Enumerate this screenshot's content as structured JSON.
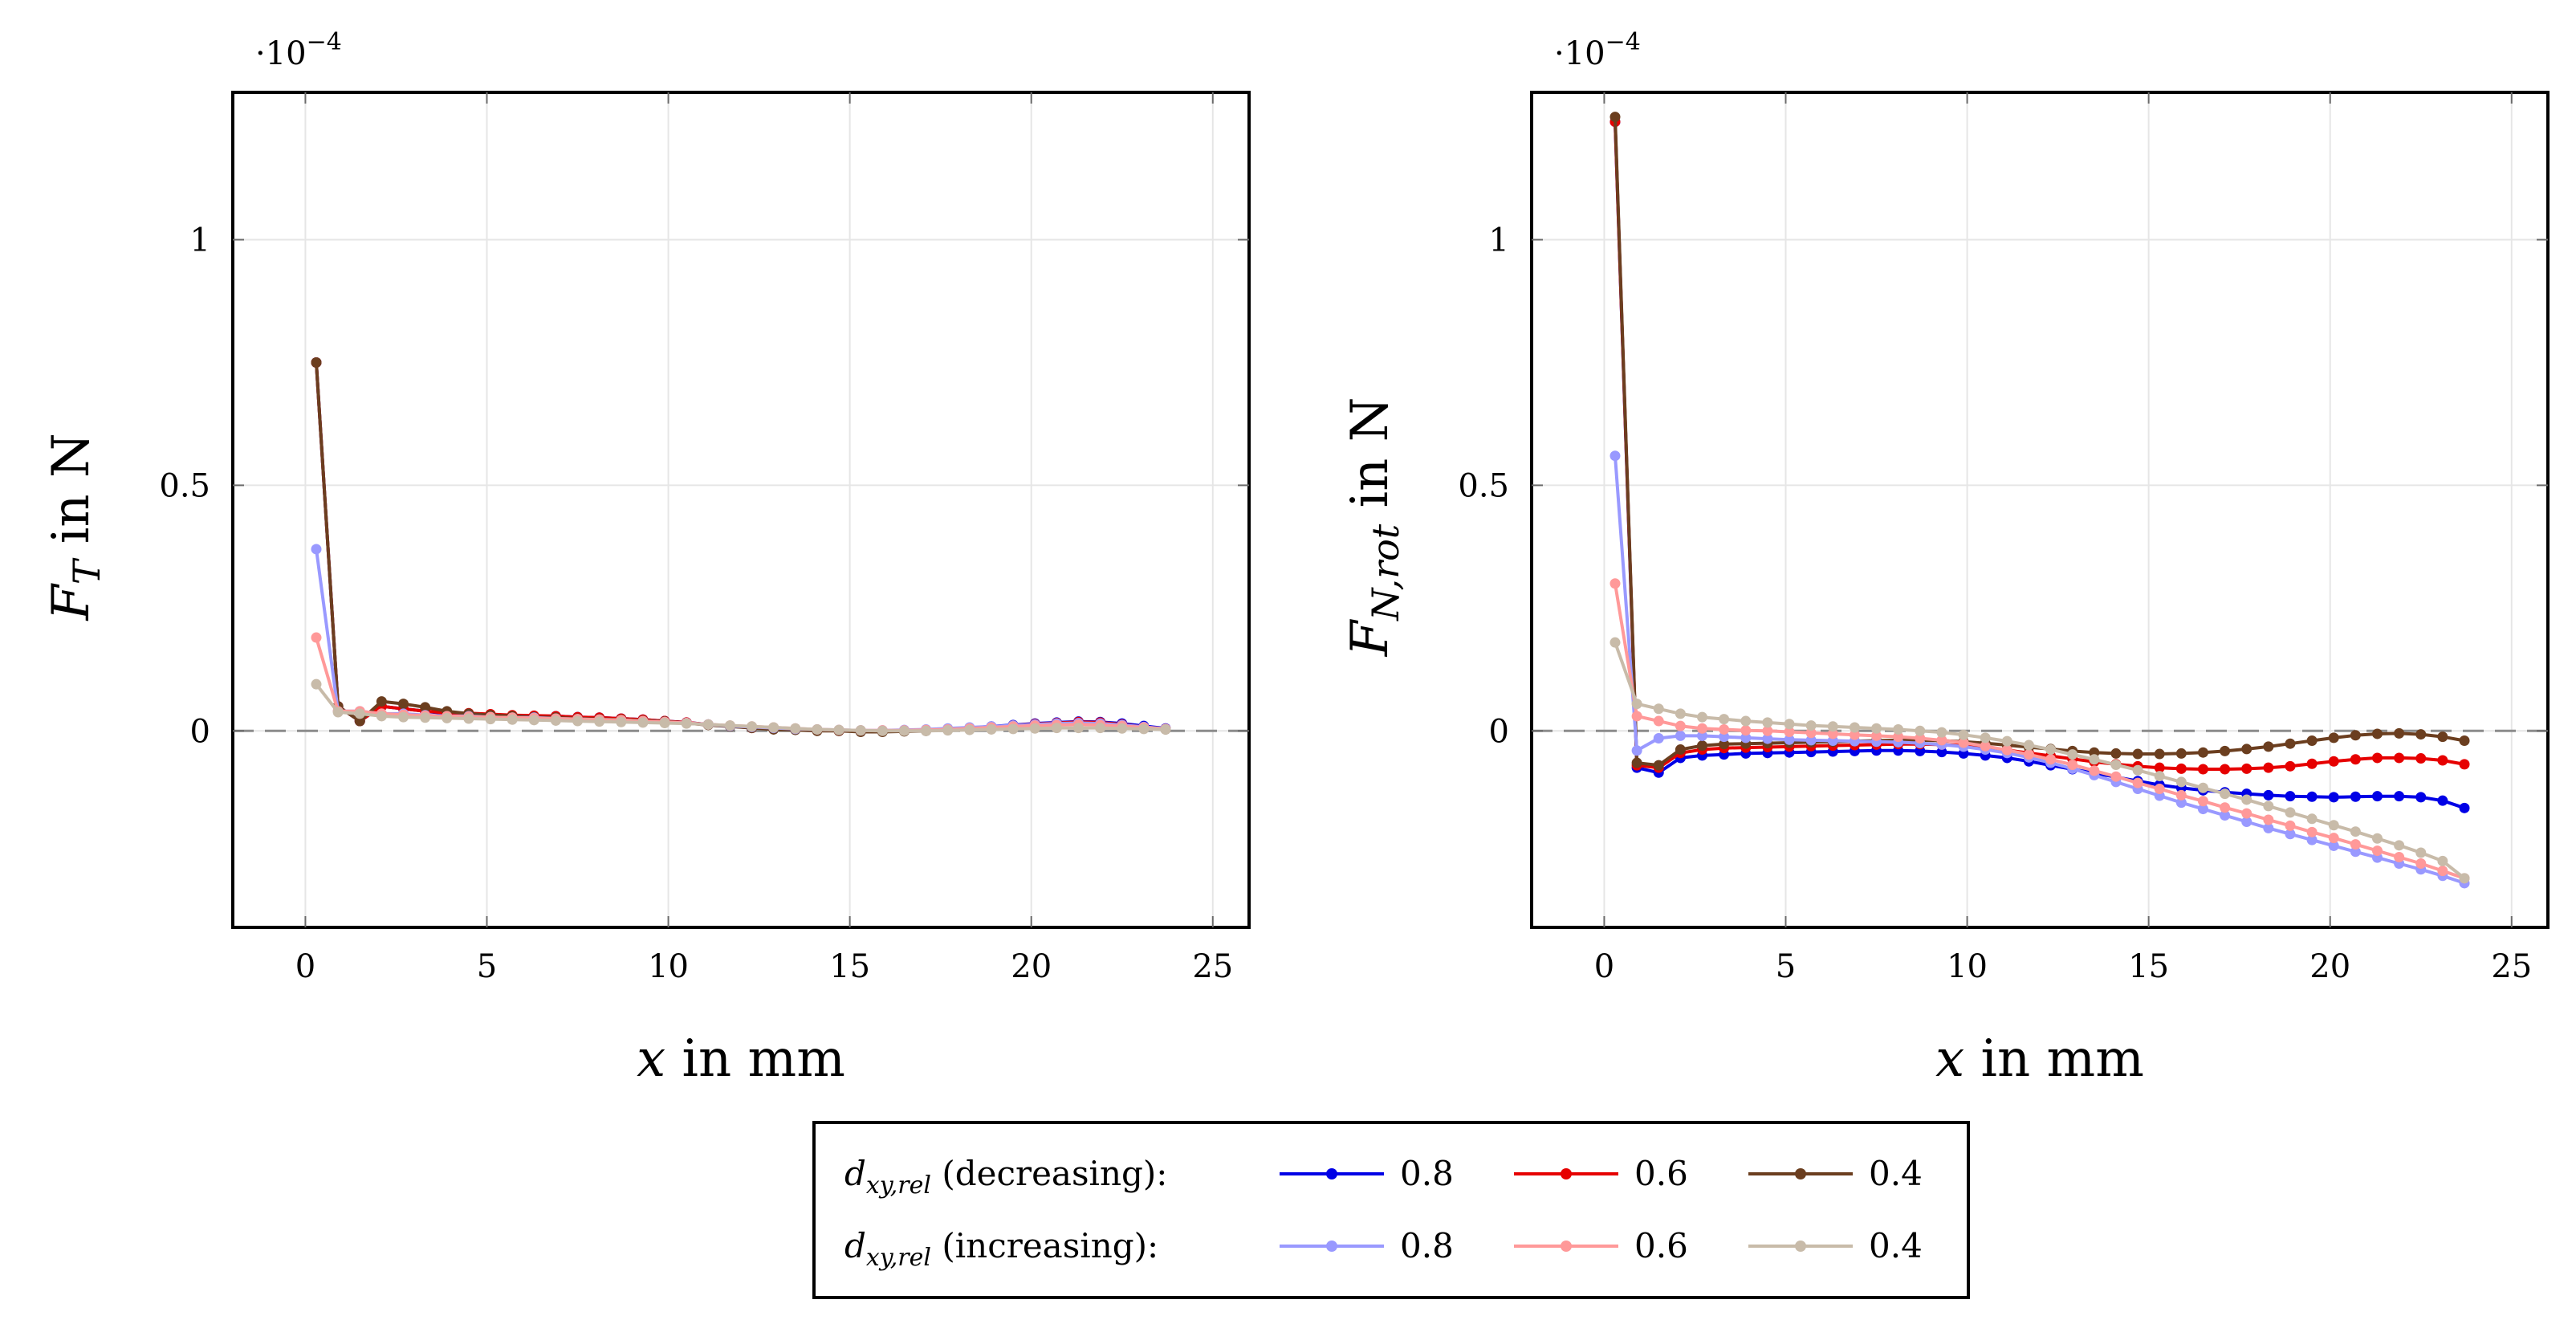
{
  "chart_data": [
    {
      "type": "line",
      "ylabel": "F",
      "ylabel_sub": "T",
      "ylabel_unit": "in N",
      "xlabel_var": "x",
      "xlabel_unit": "in mm",
      "multiplier": "·10",
      "multiplier_exp": "−4",
      "xlim": [
        -2,
        26
      ],
      "ylim": [
        -0.4,
        1.3
      ],
      "xticks": [
        0,
        5,
        10,
        15,
        20,
        25
      ],
      "yticks": [
        0,
        0.5,
        1
      ],
      "ytick_labels": [
        "0",
        "0.5",
        "1"
      ],
      "x": [
        0.3,
        0.9,
        1.5,
        2.1,
        2.7,
        3.3,
        3.9,
        4.5,
        5.1,
        5.7,
        6.3,
        6.9,
        7.5,
        8.1,
        8.7,
        9.3,
        9.9,
        10.5,
        11.1,
        11.7,
        12.3,
        12.9,
        13.5,
        14.1,
        14.7,
        15.3,
        15.9,
        16.5,
        17.1,
        17.7,
        18.3,
        18.9,
        19.5,
        20.1,
        20.7,
        21.3,
        21.9,
        22.5,
        23.1,
        23.7
      ],
      "series": [
        {
          "name": "dec 0.8",
          "color": "#0000e6",
          "values": [
            0.75,
            0.05,
            0.02,
            0.05,
            0.045,
            0.04,
            0.035,
            0.035,
            0.03,
            0.03,
            0.03,
            0.03,
            0.028,
            0.027,
            0.025,
            0.023,
            0.02,
            0.017,
            0.013,
            0.01,
            0.007,
            0.005,
            0.004,
            0.002,
            0.001,
            0.0,
            0.0,
            0.0,
            0.002,
            0.004,
            0.006,
            0.009,
            0.012,
            0.015,
            0.017,
            0.019,
            0.018,
            0.015,
            0.01,
            0.005
          ]
        },
        {
          "name": "dec 0.6",
          "color": "#e60000",
          "values": [
            0.75,
            0.05,
            0.02,
            0.05,
            0.045,
            0.04,
            0.037,
            0.036,
            0.034,
            0.032,
            0.031,
            0.03,
            0.028,
            0.027,
            0.025,
            0.023,
            0.02,
            0.017,
            0.013,
            0.01,
            0.006,
            0.004,
            0.003,
            0.002,
            0.0,
            0.0,
            0.0,
            0.0,
            0.001,
            0.003,
            0.005,
            0.008,
            0.011,
            0.014,
            0.016,
            0.018,
            0.017,
            0.013,
            0.008,
            0.004
          ]
        },
        {
          "name": "dec 0.4",
          "color": "#6b3e1f",
          "values": [
            0.75,
            0.05,
            0.02,
            0.06,
            0.055,
            0.048,
            0.04,
            0.035,
            0.032,
            0.03,
            0.028,
            0.027,
            0.025,
            0.024,
            0.023,
            0.021,
            0.019,
            0.016,
            0.012,
            0.009,
            0.006,
            0.003,
            0.002,
            0.0,
            0.0,
            -0.002,
            -0.002,
            -0.001,
            0.0,
            0.002,
            0.004,
            0.006,
            0.009,
            0.012,
            0.013,
            0.014,
            0.013,
            0.01,
            0.006,
            0.003
          ]
        },
        {
          "name": "inc 0.8",
          "color": "#9999ff",
          "values": [
            0.37,
            0.04,
            0.04,
            0.035,
            0.035,
            0.032,
            0.03,
            0.03,
            0.028,
            0.027,
            0.027,
            0.025,
            0.024,
            0.023,
            0.022,
            0.02,
            0.018,
            0.016,
            0.013,
            0.01,
            0.008,
            0.006,
            0.004,
            0.003,
            0.002,
            0.001,
            0.001,
            0.002,
            0.003,
            0.005,
            0.007,
            0.009,
            0.011,
            0.013,
            0.015,
            0.016,
            0.015,
            0.012,
            0.008,
            0.004
          ]
        },
        {
          "name": "inc 0.6",
          "color": "#ff9999",
          "values": [
            0.19,
            0.04,
            0.04,
            0.035,
            0.033,
            0.031,
            0.03,
            0.029,
            0.028,
            0.027,
            0.026,
            0.025,
            0.024,
            0.023,
            0.022,
            0.02,
            0.018,
            0.016,
            0.013,
            0.011,
            0.009,
            0.007,
            0.005,
            0.003,
            0.002,
            0.001,
            0.001,
            0.001,
            0.002,
            0.003,
            0.005,
            0.007,
            0.009,
            0.011,
            0.012,
            0.013,
            0.012,
            0.01,
            0.007,
            0.004
          ]
        },
        {
          "name": "inc 0.4",
          "color": "#c8bba9",
          "values": [
            0.095,
            0.038,
            0.035,
            0.03,
            0.028,
            0.027,
            0.026,
            0.025,
            0.024,
            0.023,
            0.022,
            0.021,
            0.02,
            0.019,
            0.018,
            0.017,
            0.016,
            0.015,
            0.013,
            0.011,
            0.009,
            0.007,
            0.005,
            0.003,
            0.002,
            0.001,
            0.0,
            0.0,
            0.0,
            0.001,
            0.002,
            0.003,
            0.004,
            0.005,
            0.006,
            0.006,
            0.006,
            0.005,
            0.004,
            0.003
          ]
        }
      ]
    },
    {
      "type": "line",
      "ylabel": "F",
      "ylabel_sub": "N,rot",
      "ylabel_unit": "in N",
      "xlabel_var": "x",
      "xlabel_unit": "in mm",
      "multiplier": "·10",
      "multiplier_exp": "−4",
      "xlim": [
        -2,
        26
      ],
      "ylim": [
        -0.4,
        1.3
      ],
      "xticks": [
        0,
        5,
        10,
        15,
        20,
        25
      ],
      "yticks": [
        0,
        0.5,
        1
      ],
      "ytick_labels": [
        "0",
        "0.5",
        "1"
      ],
      "x": [
        0.3,
        0.9,
        1.5,
        2.1,
        2.7,
        3.3,
        3.9,
        4.5,
        5.1,
        5.7,
        6.3,
        6.9,
        7.5,
        8.1,
        8.7,
        9.3,
        9.9,
        10.5,
        11.1,
        11.7,
        12.3,
        12.9,
        13.5,
        14.1,
        14.7,
        15.3,
        15.9,
        16.5,
        17.1,
        17.7,
        18.3,
        18.9,
        19.5,
        20.1,
        20.7,
        21.3,
        21.9,
        22.5,
        23.1,
        23.7
      ],
      "series": [
        {
          "name": "dec 0.8",
          "color": "#0000e6",
          "values": [
            1.24,
            -0.075,
            -0.085,
            -0.055,
            -0.05,
            -0.048,
            -0.046,
            -0.045,
            -0.044,
            -0.043,
            -0.042,
            -0.041,
            -0.04,
            -0.04,
            -0.041,
            -0.043,
            -0.046,
            -0.05,
            -0.055,
            -0.062,
            -0.07,
            -0.078,
            -0.086,
            -0.094,
            -0.102,
            -0.11,
            -0.116,
            -0.121,
            -0.125,
            -0.128,
            -0.131,
            -0.133,
            -0.134,
            -0.135,
            -0.134,
            -0.133,
            -0.133,
            -0.135,
            -0.142,
            -0.157
          ]
        },
        {
          "name": "dec 0.6",
          "color": "#e60000",
          "values": [
            1.24,
            -0.07,
            -0.075,
            -0.045,
            -0.038,
            -0.035,
            -0.034,
            -0.033,
            -0.032,
            -0.031,
            -0.03,
            -0.029,
            -0.028,
            -0.027,
            -0.027,
            -0.028,
            -0.03,
            -0.034,
            -0.039,
            -0.045,
            -0.051,
            -0.057,
            -0.063,
            -0.068,
            -0.072,
            -0.075,
            -0.077,
            -0.078,
            -0.078,
            -0.077,
            -0.075,
            -0.072,
            -0.067,
            -0.062,
            -0.058,
            -0.055,
            -0.055,
            -0.056,
            -0.06,
            -0.068
          ]
        },
        {
          "name": "dec 0.4",
          "color": "#6b3e1f",
          "values": [
            1.25,
            -0.065,
            -0.07,
            -0.038,
            -0.03,
            -0.027,
            -0.026,
            -0.025,
            -0.024,
            -0.023,
            -0.022,
            -0.021,
            -0.02,
            -0.019,
            -0.019,
            -0.02,
            -0.022,
            -0.025,
            -0.029,
            -0.033,
            -0.037,
            -0.041,
            -0.044,
            -0.046,
            -0.047,
            -0.047,
            -0.046,
            -0.044,
            -0.041,
            -0.037,
            -0.032,
            -0.026,
            -0.02,
            -0.014,
            -0.009,
            -0.006,
            -0.005,
            -0.007,
            -0.012,
            -0.02
          ]
        },
        {
          "name": "inc 0.8",
          "color": "#9999ff",
          "values": [
            0.56,
            -0.04,
            -0.015,
            -0.01,
            -0.01,
            -0.012,
            -0.014,
            -0.016,
            -0.018,
            -0.019,
            -0.02,
            -0.021,
            -0.022,
            -0.023,
            -0.025,
            -0.028,
            -0.032,
            -0.038,
            -0.045,
            -0.054,
            -0.065,
            -0.077,
            -0.09,
            -0.104,
            -0.118,
            -0.132,
            -0.146,
            -0.159,
            -0.172,
            -0.185,
            -0.198,
            -0.21,
            -0.222,
            -0.234,
            -0.246,
            -0.258,
            -0.27,
            -0.282,
            -0.295,
            -0.31
          ]
        },
        {
          "name": "inc 0.6",
          "color": "#ff9999",
          "values": [
            0.3,
            0.03,
            0.02,
            0.01,
            0.005,
            0.003,
            0.001,
            0.0,
            -0.002,
            -0.004,
            -0.006,
            -0.008,
            -0.01,
            -0.012,
            -0.015,
            -0.019,
            -0.024,
            -0.031,
            -0.039,
            -0.048,
            -0.058,
            -0.069,
            -0.081,
            -0.093,
            -0.106,
            -0.118,
            -0.131,
            -0.143,
            -0.156,
            -0.168,
            -0.181,
            -0.193,
            -0.206,
            -0.218,
            -0.231,
            -0.244,
            -0.257,
            -0.27,
            -0.285,
            -0.3
          ]
        },
        {
          "name": "inc 0.4",
          "color": "#c8bba9",
          "values": [
            0.18,
            0.055,
            0.045,
            0.035,
            0.028,
            0.024,
            0.02,
            0.017,
            0.014,
            0.011,
            0.009,
            0.007,
            0.005,
            0.003,
            0.0,
            -0.003,
            -0.008,
            -0.014,
            -0.021,
            -0.029,
            -0.038,
            -0.048,
            -0.058,
            -0.069,
            -0.08,
            -0.092,
            -0.104,
            -0.116,
            -0.128,
            -0.14,
            -0.153,
            -0.166,
            -0.179,
            -0.192,
            -0.205,
            -0.219,
            -0.233,
            -0.248,
            -0.265,
            -0.3
          ]
        }
      ]
    }
  ],
  "legend": {
    "label_var": "d",
    "label_sub": "xy,rel",
    "row_decreasing": "(decreasing):",
    "row_increasing": "(increasing):",
    "entries_decreasing": [
      {
        "label": "0.8",
        "color": "#0000e6"
      },
      {
        "label": "0.6",
        "color": "#e60000"
      },
      {
        "label": "0.4",
        "color": "#6b3e1f"
      }
    ],
    "entries_increasing": [
      {
        "label": "0.8",
        "color": "#9999ff"
      },
      {
        "label": "0.6",
        "color": "#ff9999"
      },
      {
        "label": "0.4",
        "color": "#c8bba9"
      }
    ]
  }
}
